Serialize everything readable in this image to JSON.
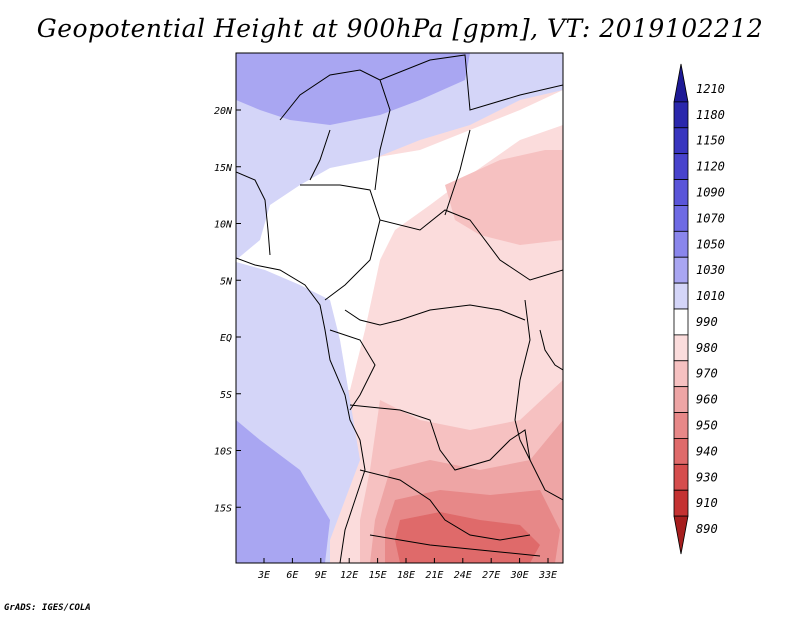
{
  "title": "Geopotential Height at 900hPa [gpm], VT: 2019102212",
  "footer": "GrADS: IGES/COLA",
  "map": {
    "lat_labels": [
      "20N",
      "15N",
      "10N",
      "5N",
      "EQ",
      "5S",
      "10S",
      "15S"
    ],
    "lon_labels": [
      "3E",
      "6E",
      "9E",
      "12E",
      "15E",
      "18E",
      "21E",
      "24E",
      "27E",
      "30E",
      "33E"
    ]
  },
  "legend": {
    "labels": [
      "1210",
      "1180",
      "1150",
      "1120",
      "1090",
      "1070",
      "1050",
      "1030",
      "1010",
      "990",
      "980",
      "970",
      "960",
      "950",
      "940",
      "930",
      "910",
      "890"
    ],
    "colors": [
      "#1e1a96",
      "#2a27ac",
      "#3835bf",
      "#4843cc",
      "#5a55d9",
      "#6e6ae4",
      "#8a86ec",
      "#a9a6f2",
      "#d4d5f8",
      "#ffffff",
      "#fbdcdc",
      "#f6c1c1",
      "#eea5a5",
      "#e78888",
      "#df6a6a",
      "#d54d4d",
      "#c43232",
      "#a61e1e"
    ]
  },
  "colors": {
    "land_border": "#000000",
    "ocean_fill": "#d4d5f8",
    "north_fill": "#a9a6f2"
  }
}
